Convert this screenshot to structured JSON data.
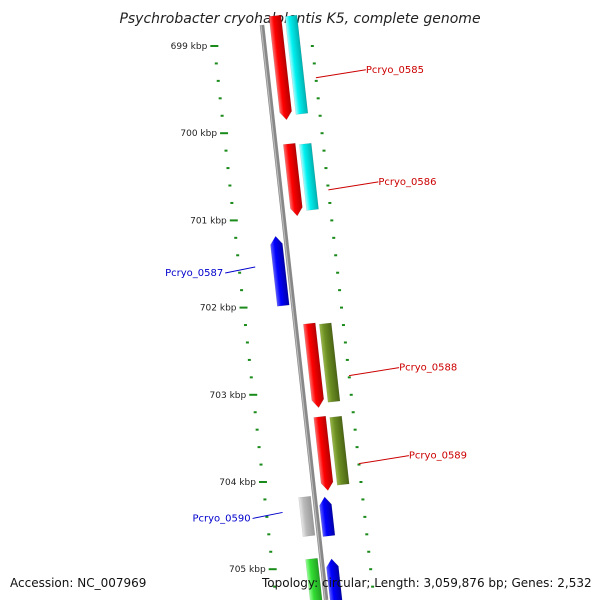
{
  "title": "Psychrobacter cryohalolentis K5, complete genome",
  "footer": {
    "accession": "Accession: NC_007969",
    "topology": "Topology: circular; Length: 3,059,876 bp; Genes: 2,532"
  },
  "colors": {
    "backbone": "#888888",
    "forward_cds": "#ff0000",
    "reverse_cds": "#0000ff",
    "cyan_feature": "#00e8e8",
    "olive_feature": "#6b8e23",
    "gray_feature": "#bbbbbb",
    "green_feature": "#33cc33",
    "tick": "#1a8a1a",
    "forward_label": "#cc0000",
    "reverse_label": "#0000cc"
  },
  "ticks": [
    {
      "label": "699 kbp",
      "kbp": 699
    },
    {
      "label": "700 kbp",
      "kbp": 700
    },
    {
      "label": "701 kbp",
      "kbp": 701
    },
    {
      "label": "702 kbp",
      "kbp": 702
    },
    {
      "label": "703 kbp",
      "kbp": 703
    },
    {
      "label": "704 kbp",
      "kbp": 704
    },
    {
      "label": "705 kbp",
      "kbp": 705
    }
  ],
  "genes": [
    {
      "name": "Pcryo_0585",
      "strand": "forward",
      "start_kbp": 698.65,
      "end_kbp": 699.85,
      "companion": "cyan"
    },
    {
      "name": "Pcryo_0586",
      "strand": "forward",
      "start_kbp": 700.12,
      "end_kbp": 700.95,
      "companion": "cyan"
    },
    {
      "name": "Pcryo_0587",
      "strand": "reverse",
      "start_kbp": 701.18,
      "end_kbp": 701.98
    },
    {
      "name": "Pcryo_0588",
      "strand": "forward",
      "start_kbp": 702.18,
      "end_kbp": 703.15,
      "companion": "olive"
    },
    {
      "name": "Pcryo_0589",
      "strand": "forward",
      "start_kbp": 703.25,
      "end_kbp": 704.1,
      "companion": "olive"
    },
    {
      "name": "Pcryo_0590",
      "strand": "reverse",
      "start_kbp": 704.17,
      "end_kbp": 704.62,
      "companion": "gray"
    },
    {
      "name": "",
      "strand": "reverse",
      "start_kbp": 704.88,
      "end_kbp": 705.4,
      "companion": "green"
    }
  ]
}
